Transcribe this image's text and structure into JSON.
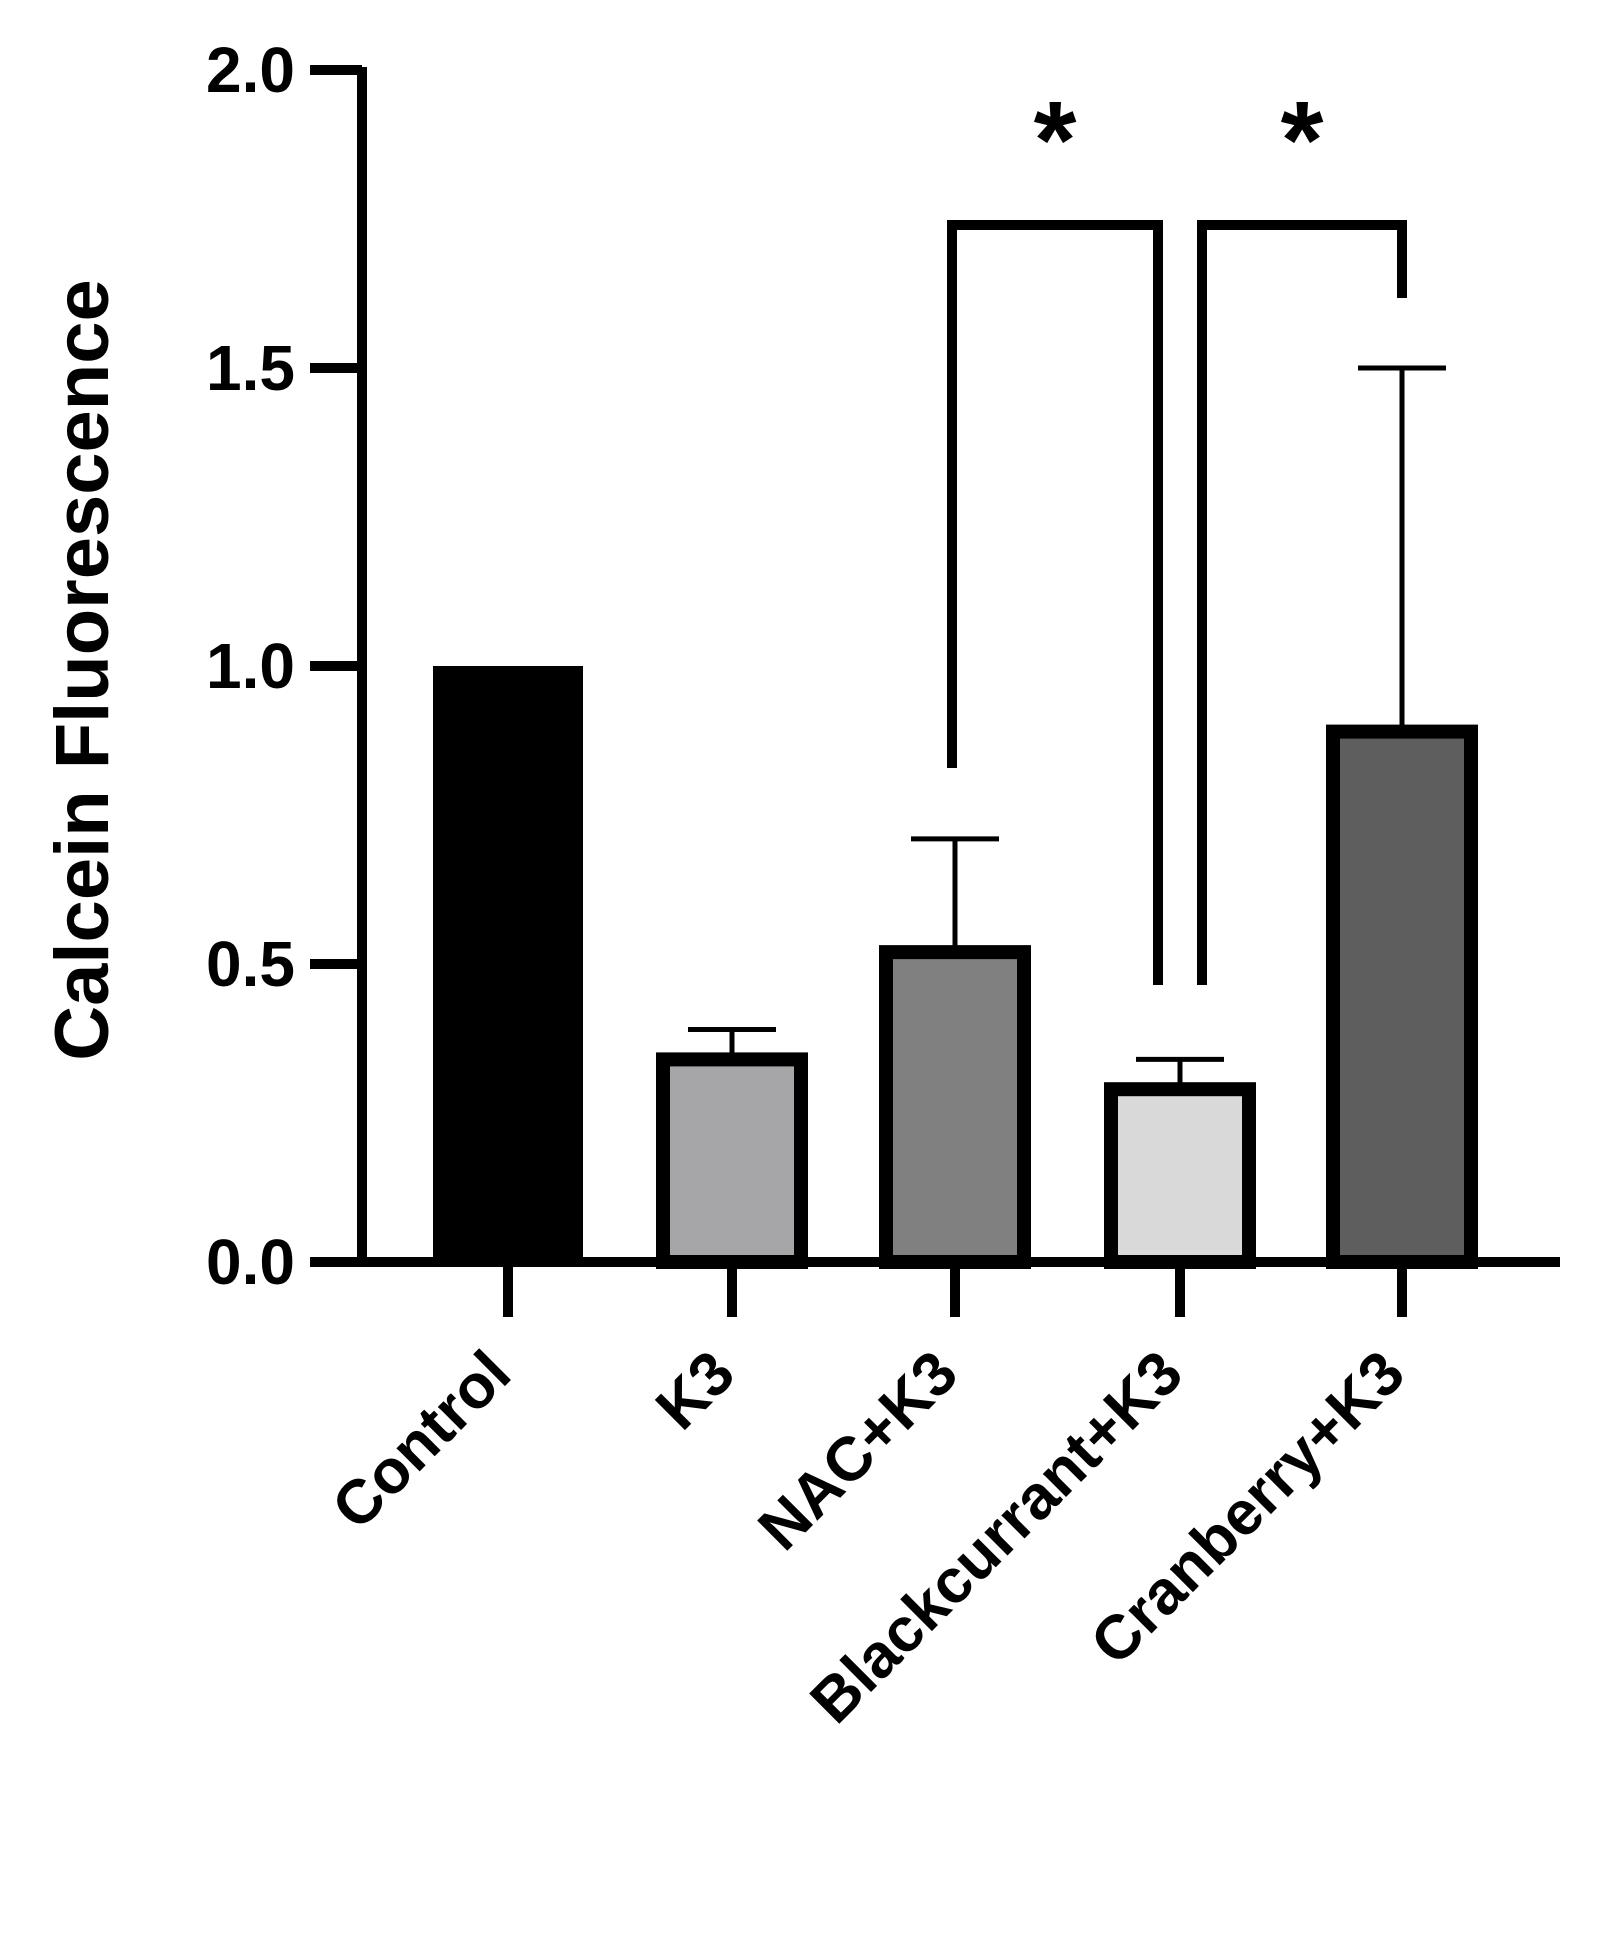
{
  "chart_data": {
    "type": "bar",
    "title": "",
    "xlabel": "",
    "ylabel": "Calcein Fluorescence",
    "ylim": [
      0,
      2.0
    ],
    "yticks": [
      "0.0",
      "0.5",
      "1.0",
      "1.5",
      "2.0"
    ],
    "grid": false,
    "legend": "none",
    "categories": [
      "Control",
      "K3",
      "NAC+K3",
      "Blackcurrant+K3",
      "Cranberry+K3"
    ],
    "values": [
      1.0,
      0.35,
      0.53,
      0.3,
      0.9
    ],
    "errors": [
      0.0,
      0.04,
      0.18,
      0.04,
      0.6
    ],
    "colors": [
      "#000000",
      "#a6a6a8",
      "#808080",
      "#d9d9d9",
      "#5e5e5e"
    ],
    "significance": [
      {
        "from": 2,
        "to": 3,
        "label": "*"
      },
      {
        "from": 3,
        "to": 4,
        "label": "*"
      }
    ]
  }
}
